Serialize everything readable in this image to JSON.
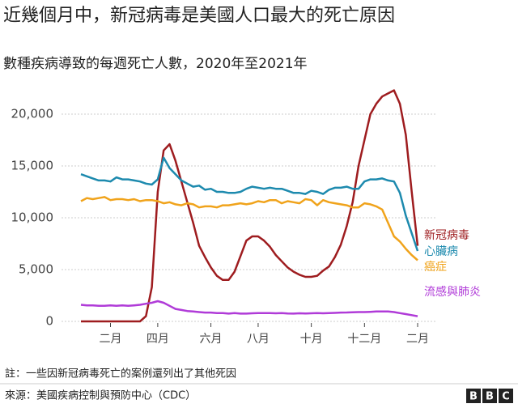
{
  "chart_data": {
    "type": "line",
    "title": "近幾個月中，新冠病毒是美國人口最大的死亡原因",
    "subtitle": "數種疾病導致的每週死亡人數，2020年至2021年",
    "note": "註：一些因新冠病毒死亡的案例還列出了其他死因",
    "source": "來源：美國疾病控制與預防中心（CDC）",
    "logo": [
      "B",
      "B",
      "C"
    ],
    "categories": [
      null,
      null,
      null,
      null,
      null,
      "二月",
      null,
      null,
      null,
      null,
      null,
      null,
      null,
      "四月",
      null,
      null,
      null,
      null,
      null,
      null,
      null,
      null,
      "六月",
      null,
      null,
      null,
      null,
      null,
      null,
      null,
      "八月",
      null,
      null,
      null,
      null,
      null,
      null,
      null,
      null,
      "十月",
      null,
      null,
      null,
      null,
      null,
      null,
      null,
      null,
      "十二月",
      null,
      null,
      null,
      null,
      null,
      null,
      null,
      null,
      "二月"
    ],
    "ylim": [
      0,
      22500
    ],
    "yticks": [
      0,
      {
        "value": 5000,
        "label": "5,000"
      },
      {
        "value": 10000,
        "label": "10,000"
      },
      {
        "value": 15000,
        "label": "15,000"
      },
      {
        "value": 20000,
        "label": "20,000"
      }
    ],
    "grid": true,
    "series": [
      {
        "name": "新冠病毒",
        "color": "#9e1c1f",
        "values": [
          0,
          0,
          0,
          0,
          0,
          0,
          0,
          0,
          0,
          0,
          0,
          500,
          3300,
          12500,
          16500,
          17100,
          15500,
          13500,
          11500,
          9500,
          7300,
          6200,
          5200,
          4400,
          4000,
          4000,
          4800,
          6300,
          7800,
          8200,
          8200,
          7800,
          7200,
          6400,
          5800,
          5200,
          4800,
          4500,
          4300,
          4300,
          4400,
          4900,
          5300,
          6200,
          7400,
          9200,
          11500,
          15000,
          17500,
          20000,
          21000,
          21700,
          22000,
          22300,
          21000,
          18000,
          12500,
          7300
        ]
      },
      {
        "name": "心臟病",
        "color": "#1d8aae",
        "values": [
          14200,
          14000,
          13800,
          13600,
          13600,
          13500,
          13900,
          13700,
          13700,
          13600,
          13500,
          13300,
          13200,
          13700,
          15800,
          14800,
          14200,
          13600,
          13300,
          13000,
          13100,
          12700,
          12800,
          12500,
          12500,
          12400,
          12400,
          12500,
          12800,
          13000,
          12900,
          12800,
          12900,
          12800,
          12800,
          12600,
          12400,
          12400,
          12300,
          12600,
          12500,
          12300,
          12700,
          12900,
          12900,
          13000,
          12800,
          12800,
          13500,
          13700,
          13700,
          13800,
          13600,
          13500,
          12400,
          10200,
          8500,
          6800
        ]
      },
      {
        "name": "癌症",
        "color": "#f0a31b",
        "values": [
          11600,
          11900,
          11800,
          11900,
          12000,
          11700,
          11800,
          11800,
          11700,
          11800,
          11600,
          11700,
          11700,
          11600,
          11400,
          11500,
          11300,
          11200,
          11400,
          11300,
          11000,
          11100,
          11100,
          11000,
          11200,
          11200,
          11300,
          11400,
          11300,
          11400,
          11600,
          11500,
          11700,
          11700,
          11400,
          11600,
          11500,
          11400,
          11800,
          11700,
          11200,
          11700,
          11500,
          11400,
          11300,
          11200,
          11000,
          11000,
          11400,
          11300,
          11100,
          10800,
          9500,
          8200,
          7700,
          7000,
          6400,
          5900
        ]
      },
      {
        "name": "流感與肺炎",
        "color": "#b03bd8",
        "values": [
          1600,
          1550,
          1550,
          1500,
          1500,
          1550,
          1500,
          1550,
          1500,
          1550,
          1600,
          1700,
          1800,
          1950,
          1800,
          1500,
          1200,
          1100,
          1000,
          950,
          900,
          850,
          850,
          800,
          800,
          750,
          800,
          750,
          750,
          780,
          800,
          800,
          800,
          780,
          800,
          760,
          750,
          780,
          760,
          780,
          800,
          780,
          800,
          820,
          850,
          860,
          880,
          900,
          900,
          920,
          950,
          950,
          950,
          900,
          800,
          700,
          600,
          500
        ]
      }
    ]
  }
}
